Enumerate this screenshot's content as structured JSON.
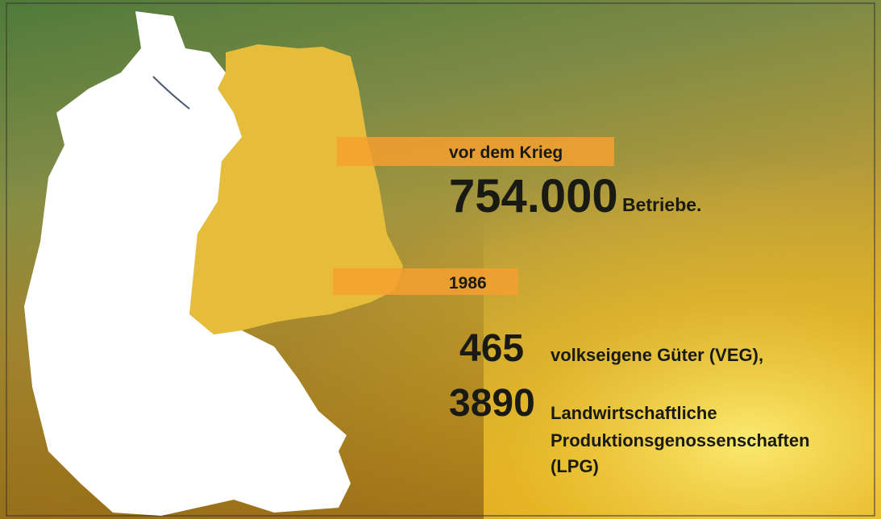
{
  "before_war": {
    "label": "vor dem Krieg",
    "number": "754.000",
    "unit": "Betriebe."
  },
  "year_1986": {
    "label": "1986",
    "veg_number": "465",
    "veg_text": "volkseigene Güter (VEG),",
    "lpg_number": "3890",
    "lpg_lines": [
      "Landwirtschaftliche",
      "Produktionsgenossenschaften",
      "(LPG)"
    ]
  }
}
